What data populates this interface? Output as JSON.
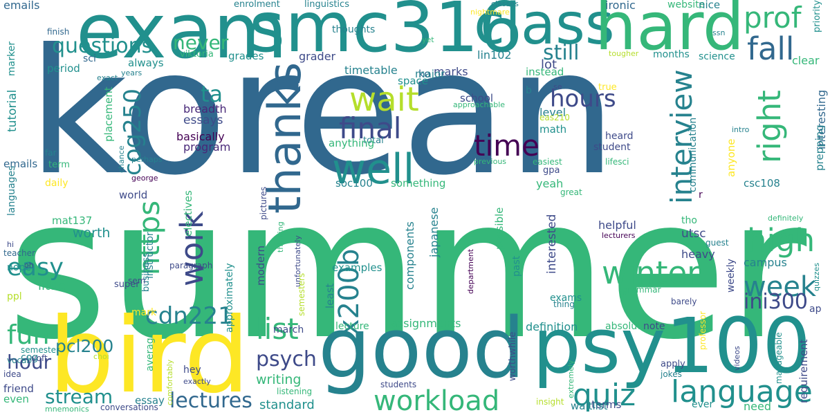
{
  "palette": [
    "#31688e",
    "#35b779",
    "#21908d",
    "#fde725",
    "#440154",
    "#3e4a89",
    "#6ece58",
    "#1f9e89",
    "#26828e",
    "#b5de2b",
    "#482878"
  ],
  "words": [
    {
      "text": "korean",
      "color": "#31688e"
    },
    {
      "text": "summer",
      "color": "#35b779"
    },
    {
      "text": "exam",
      "color": "#21908d"
    },
    {
      "text": "smc316",
      "color": "#21908d"
    },
    {
      "text": "class",
      "color": "#21908d"
    },
    {
      "text": "hard",
      "color": "#35b779"
    },
    {
      "text": "bird",
      "color": "#fde725"
    },
    {
      "text": "good",
      "color": "#26828e"
    },
    {
      "text": "psy100",
      "color": "#21908d"
    },
    {
      "text": "thanks",
      "color": "#31688e"
    },
    {
      "text": "prof",
      "color": "#35b779"
    },
    {
      "text": "fall",
      "color": "#31688e"
    },
    {
      "text": "questions",
      "color": "#21908d"
    },
    {
      "text": "never",
      "color": "#35b779"
    },
    {
      "text": "well",
      "color": "#21908d"
    },
    {
      "text": "wait",
      "color": "#b5de2b"
    },
    {
      "text": "final",
      "color": "#3e4a89"
    },
    {
      "text": "time",
      "color": "#440154"
    },
    {
      "text": "interview",
      "color": "#26828e"
    },
    {
      "text": "right",
      "color": "#35b779"
    },
    {
      "text": "high",
      "color": "#35b779"
    },
    {
      "text": "hours",
      "color": "#3e4a89"
    },
    {
      "text": "still",
      "color": "#26828e"
    },
    {
      "text": "winter",
      "color": "#35b779"
    },
    {
      "text": "week",
      "color": "#26828e"
    },
    {
      "text": "ini300",
      "color": "#3e4a89"
    },
    {
      "text": "work",
      "color": "#3e4a89"
    },
    {
      "text": "https",
      "color": "#35b779"
    },
    {
      "text": "x200b",
      "color": "#26828e"
    },
    {
      "text": "cog250",
      "color": "#26828e"
    },
    {
      "text": "ta",
      "color": "#21908d"
    },
    {
      "text": "easy",
      "color": "#21908d"
    },
    {
      "text": "fun",
      "color": "#35b779"
    },
    {
      "text": "cdn221",
      "color": "#26828e"
    },
    {
      "text": "list",
      "color": "#35b779"
    },
    {
      "text": "psych",
      "color": "#3e4a89"
    },
    {
      "text": "hour",
      "color": "#3e4a89"
    },
    {
      "text": "stream",
      "color": "#21908d"
    },
    {
      "text": "lectures",
      "color": "#31688e"
    },
    {
      "text": "workload",
      "color": "#35b779"
    },
    {
      "text": "quiz",
      "color": "#21908d"
    },
    {
      "text": "language",
      "color": "#21908d"
    },
    {
      "text": "emails",
      "color": "#31688e"
    },
    {
      "text": "enrolment",
      "color": "#26828e"
    },
    {
      "text": "linguistics",
      "color": "#26828e"
    },
    {
      "text": "classes",
      "color": "#26828e"
    },
    {
      "text": "ironic",
      "color": "#31688e"
    },
    {
      "text": "website",
      "color": "#35b779"
    },
    {
      "text": "nice",
      "color": "#26828e"
    },
    {
      "text": "priority",
      "color": "#21908d"
    },
    {
      "text": "finish",
      "color": "#31688e"
    },
    {
      "text": "thoughts",
      "color": "#26828e"
    },
    {
      "text": "yet",
      "color": "#35b779"
    },
    {
      "text": "nightmare",
      "color": "#fde725"
    },
    {
      "text": "ko",
      "color": "#31688e"
    },
    {
      "text": "lot",
      "color": "#3e4a89"
    },
    {
      "text": "ssn",
      "color": "#26828e"
    },
    {
      "text": "marker",
      "color": "#21908d"
    },
    {
      "text": "sci",
      "color": "#31688e"
    },
    {
      "text": "exact",
      "color": "#26828e"
    },
    {
      "text": "viktoria",
      "color": "#35b779"
    },
    {
      "text": "grades",
      "color": "#21908d"
    },
    {
      "text": "grader",
      "color": "#3e4a89"
    },
    {
      "text": "timetable",
      "color": "#26828e"
    },
    {
      "text": "marks",
      "color": "#3e4a89"
    },
    {
      "text": "lin102",
      "color": "#26828e"
    },
    {
      "text": "tougher",
      "color": "#b5de2b"
    },
    {
      "text": "months",
      "color": "#21908d"
    },
    {
      "text": "science",
      "color": "#21908d"
    },
    {
      "text": "clear",
      "color": "#35b779"
    },
    {
      "text": "period",
      "color": "#21908d"
    },
    {
      "text": "always",
      "color": "#21908d"
    },
    {
      "text": "years",
      "color": "#26828e"
    },
    {
      "text": "space",
      "color": "#21908d"
    },
    {
      "text": "major",
      "color": "#26828e"
    },
    {
      "text": "instead",
      "color": "#35b779"
    },
    {
      "text": "tutorial",
      "color": "#21908d"
    },
    {
      "text": "breadth",
      "color": "#482878"
    },
    {
      "text": "essays",
      "color": "#3e4a89"
    },
    {
      "text": "school",
      "color": "#3e4a89"
    },
    {
      "text": "approachable",
      "color": "#35b779"
    },
    {
      "text": "level",
      "color": "#26828e"
    },
    {
      "text": "b",
      "color": "#26828e"
    },
    {
      "text": "se",
      "color": "#3e4a89"
    },
    {
      "text": "true",
      "color": "#fde725"
    },
    {
      "text": "eas210",
      "color": "#b5de2b"
    },
    {
      "text": "math",
      "color": "#21908d"
    },
    {
      "text": "communication",
      "color": "#26828e"
    },
    {
      "text": "interesting",
      "color": "#31688e"
    },
    {
      "text": "basically",
      "color": "#440154"
    },
    {
      "text": "program",
      "color": "#482878"
    },
    {
      "text": "placement",
      "color": "#35b779"
    },
    {
      "text": "total",
      "color": "#26828e"
    },
    {
      "text": "heard",
      "color": "#3e4a89"
    },
    {
      "text": "intro",
      "color": "#26828e"
    },
    {
      "text": "student",
      "color": "#3e4a89"
    },
    {
      "text": "anything",
      "color": "#35b779"
    },
    {
      "text": "chance",
      "color": "#26828e"
    },
    {
      "text": "far",
      "color": "#26828e"
    },
    {
      "text": "term",
      "color": "#35b779"
    },
    {
      "text": "perhaps",
      "color": "#26828e"
    },
    {
      "text": "previous",
      "color": "#35b779"
    },
    {
      "text": "easiest",
      "color": "#35b779"
    },
    {
      "text": "gpa",
      "color": "#3e4a89"
    },
    {
      "text": "lifesci",
      "color": "#35b779"
    },
    {
      "text": "anyone",
      "color": "#fde725"
    },
    {
      "text": "prepping",
      "color": "#26828e"
    },
    {
      "text": "emails",
      "color": "#31688e"
    },
    {
      "text": "daily",
      "color": "#fde725"
    },
    {
      "text": "george",
      "color": "#440154"
    },
    {
      "text": "something",
      "color": "#35b779"
    },
    {
      "text": "soc100",
      "color": "#26828e"
    },
    {
      "text": "yeah",
      "color": "#35b779"
    },
    {
      "text": "csc108",
      "color": "#26828e"
    },
    {
      "text": "languages",
      "color": "#26828e"
    },
    {
      "text": "world",
      "color": "#3e4a89"
    },
    {
      "text": "great",
      "color": "#35b779"
    },
    {
      "text": "r",
      "color": "#440154"
    },
    {
      "text": "mat137",
      "color": "#35b779"
    },
    {
      "text": "electives",
      "color": "#35b779"
    },
    {
      "text": "pictures",
      "color": "#3e4a89"
    },
    {
      "text": "definitely",
      "color": "#35b779"
    },
    {
      "text": "tho",
      "color": "#35b779"
    },
    {
      "text": "worth",
      "color": "#21908d"
    },
    {
      "text": "instructor",
      "color": "#26828e"
    },
    {
      "text": "approximately",
      "color": "#21908d"
    },
    {
      "text": "thinking",
      "color": "#35b779"
    },
    {
      "text": "modern",
      "color": "#3e4a89"
    },
    {
      "text": "components",
      "color": "#26828e"
    },
    {
      "text": "helpful",
      "color": "#3e4a89"
    },
    {
      "text": "utsc",
      "color": "#3e4a89"
    },
    {
      "text": "lecturers",
      "color": "#440154"
    },
    {
      "text": "guest",
      "color": "#26828e"
    },
    {
      "text": "hi",
      "color": "#3e4a89"
    },
    {
      "text": "teacher",
      "color": "#31688e"
    },
    {
      "text": "nope",
      "color": "#21908d"
    },
    {
      "text": "oh",
      "color": "#3e4a89"
    },
    {
      "text": "business",
      "color": "#26828e"
    },
    {
      "text": "unfortunately",
      "color": "#3e4a89"
    },
    {
      "text": "japanese",
      "color": "#26828e"
    },
    {
      "text": "examples",
      "color": "#21908d"
    },
    {
      "text": "department",
      "color": "#440154"
    },
    {
      "text": "past",
      "color": "#21908d"
    },
    {
      "text": "possible",
      "color": "#35b779"
    },
    {
      "text": "interested",
      "color": "#3e4a89"
    },
    {
      "text": "heavy",
      "color": "#3e4a89"
    },
    {
      "text": "campus",
      "color": "#26828e"
    },
    {
      "text": "little",
      "color": "#35b779"
    },
    {
      "text": "paragraph",
      "color": "#3e4a89"
    },
    {
      "text": "exams",
      "color": "#21908d"
    },
    {
      "text": "least",
      "color": "#26828e"
    },
    {
      "text": "quizzes",
      "color": "#21908d"
    },
    {
      "text": "ppl",
      "color": "#b5de2b"
    },
    {
      "text": "sem",
      "color": "#3e4a89"
    },
    {
      "text": "super",
      "color": "#3e4a89"
    },
    {
      "text": "semesters",
      "color": "#b5de2b"
    },
    {
      "text": "weekly",
      "color": "#3e4a89"
    },
    {
      "text": "thing",
      "color": "#26828e"
    },
    {
      "text": "grammar",
      "color": "#35b779"
    },
    {
      "text": "barely",
      "color": "#3e4a89"
    },
    {
      "text": "ap",
      "color": "#3e4a89"
    },
    {
      "text": "vocab",
      "color": "#26828e"
    },
    {
      "text": "uoft",
      "color": "#3e4a89"
    },
    {
      "text": "mark",
      "color": "#fde725"
    },
    {
      "text": "pcl200",
      "color": "#26828e"
    },
    {
      "text": "assignments",
      "color": "#35b779"
    },
    {
      "text": "absolutely",
      "color": "#35b779"
    },
    {
      "text": "definition",
      "color": "#21908d"
    },
    {
      "text": "semester",
      "color": "#21908d"
    },
    {
      "text": "choi",
      "color": "#b5de2b"
    },
    {
      "text": "lecture",
      "color": "#35b779"
    },
    {
      "text": "march",
      "color": "#3e4a89"
    },
    {
      "text": "note",
      "color": "#3e4a89"
    },
    {
      "text": "professor",
      "color": "#fde725"
    },
    {
      "text": "cog",
      "color": "#26828e"
    },
    {
      "text": "average",
      "color": "#35b779"
    },
    {
      "text": "hey",
      "color": "#3e4a89"
    },
    {
      "text": "worthwhile",
      "color": "#3e4a89"
    },
    {
      "text": "extremely",
      "color": "#35b779"
    },
    {
      "text": "videos",
      "color": "#3e4a89"
    },
    {
      "text": "manageable",
      "color": "#21908d"
    },
    {
      "text": "requirement",
      "color": "#3e4a89"
    },
    {
      "text": "idea",
      "color": "#3e4a89"
    },
    {
      "text": "comfortably",
      "color": "#b5de2b"
    },
    {
      "text": "writing",
      "color": "#35b779"
    },
    {
      "text": "apply",
      "color": "#3e4a89"
    },
    {
      "text": "jokes",
      "color": "#26828e"
    },
    {
      "text": "friend",
      "color": "#3e4a89"
    },
    {
      "text": "exactly",
      "color": "#3e4a89"
    },
    {
      "text": "students",
      "color": "#3e4a89"
    },
    {
      "text": "listening",
      "color": "#35b779"
    },
    {
      "text": "even",
      "color": "#35b779"
    },
    {
      "text": "essay",
      "color": "#26828e"
    },
    {
      "text": "standard",
      "color": "#21908d"
    },
    {
      "text": "insight",
      "color": "#b5de2b"
    },
    {
      "text": "terms",
      "color": "#3e4a89"
    },
    {
      "text": "ever",
      "color": "#21908d"
    },
    {
      "text": "need",
      "color": "#35b779"
    },
    {
      "text": "mnemonics",
      "color": "#35b779"
    },
    {
      "text": "conversations",
      "color": "#3e4a89"
    },
    {
      "text": "waitlist",
      "color": "#26828e"
    }
  ]
}
